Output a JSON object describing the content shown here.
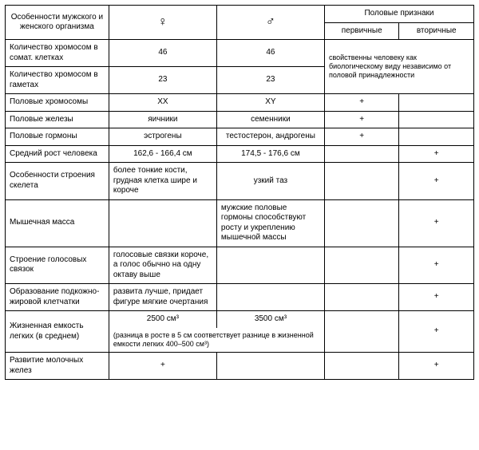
{
  "header": {
    "features": "Особенности мужского и женского организма",
    "female_symbol": "♀",
    "male_symbol": "♂",
    "sex_traits": "Половые признаки",
    "primary": "первичные",
    "secondary": "вторичные"
  },
  "rows": [
    {
      "feature": "Количество хромосом в сомат. клетках",
      "female": "46",
      "male": "46",
      "span_note": "свойственны человеку как биологическому виду независимо от половой принадлежности"
    },
    {
      "feature": "Количество хромосом в гаметах",
      "female": "23",
      "male": "23"
    },
    {
      "feature": "Половые хромосомы",
      "female": "XX",
      "male": "XY",
      "primary": "+",
      "secondary": ""
    },
    {
      "feature": "Половые железы",
      "female": "яичники",
      "male": "семенники",
      "primary": "+",
      "secondary": ""
    },
    {
      "feature": "Половые гормоны",
      "female": "эстрогены",
      "male": "тестостерон, андрогены",
      "primary": "+",
      "secondary": ""
    },
    {
      "feature": "Средний рост человека",
      "female": "162,6 - 166,4 см",
      "male": "174,5 - 176,6 см",
      "primary": "",
      "secondary": "+"
    },
    {
      "feature": "Особенности строения скелета",
      "female": "более тонкие кости, грудная клетка шире и короче",
      "male": "узкий таз",
      "primary": "",
      "secondary": "+"
    },
    {
      "feature": "Мышечная масса",
      "female": "",
      "male": "мужские половые гормоны способствуют росту и укреплению мышечной массы",
      "primary": "",
      "secondary": "+"
    },
    {
      "feature": "Строение голосовых связок",
      "female": "голосовые связки короче, а голос обычно на одну октаву выше",
      "male": "",
      "primary": "",
      "secondary": "+"
    },
    {
      "feature": "Образование подкожно-жировой клетчатки",
      "female": "развита лучше, придает фигуре мягкие очертания",
      "male": "",
      "primary": "",
      "secondary": "+"
    },
    {
      "feature": "Жизненная емкость легких (в среднем)",
      "female": "2500 см³",
      "male": "3500 см³",
      "note": "(разница в росте в 5 см соответствует разнице в жизненной емкости легких 400–500 см³)",
      "primary": "",
      "secondary": "+"
    },
    {
      "feature": "Развитие молочных желез",
      "female": "+",
      "male": "",
      "primary": "",
      "secondary": "+"
    }
  ]
}
